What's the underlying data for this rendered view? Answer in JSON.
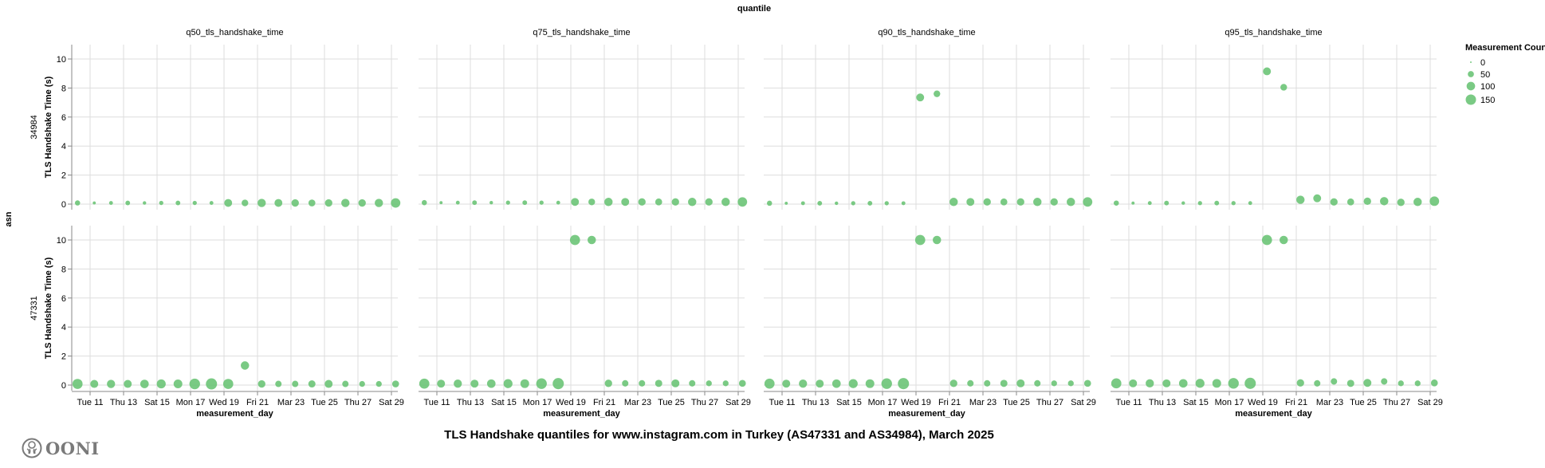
{
  "chart_data": {
    "type": "scatter",
    "title": "TLS Handshake quantiles for www.instagram.com in Turkey (AS47331 and AS34984), March 2025",
    "column_facet_title": "quantile",
    "row_facet_title": "asn",
    "xlabel": "measurement_day",
    "ylabel": "TLS Handshake Time (s)",
    "ylim": [
      0,
      11
    ],
    "yticks": [
      0,
      2,
      4,
      6,
      8,
      10
    ],
    "xticks": [
      {
        "date": "2025-03-11",
        "label": "Tue 11"
      },
      {
        "date": "2025-03-13",
        "label": "Thu 13"
      },
      {
        "date": "2025-03-15",
        "label": "Sat 15"
      },
      {
        "date": "2025-03-17",
        "label": "Mon 17"
      },
      {
        "date": "2025-03-19",
        "label": "Wed 19"
      },
      {
        "date": "2025-03-21",
        "label": "Fri 21"
      },
      {
        "date": "2025-03-23",
        "label": "Mar 23"
      },
      {
        "date": "2025-03-25",
        "label": "Tue 25"
      },
      {
        "date": "2025-03-27",
        "label": "Thu 27"
      },
      {
        "date": "2025-03-29",
        "label": "Sat 29"
      }
    ],
    "grid": true,
    "color": "#6cc477",
    "size_legend": {
      "title": "Measurement Count",
      "values": [
        0,
        50,
        100,
        150
      ],
      "placement": "top-right"
    },
    "columns": [
      "q50_tls_handshake_time",
      "q75_tls_handshake_time",
      "q90_tls_handshake_time",
      "q95_tls_handshake_time"
    ],
    "dates": [
      "2025-03-10",
      "2025-03-11",
      "2025-03-12",
      "2025-03-13",
      "2025-03-14",
      "2025-03-15",
      "2025-03-16",
      "2025-03-17",
      "2025-03-18",
      "2025-03-19",
      "2025-03-20",
      "2025-03-21",
      "2025-03-22",
      "2025-03-23",
      "2025-03-24",
      "2025-03-25",
      "2025-03-26",
      "2025-03-27",
      "2025-03-28",
      "2025-03-29"
    ],
    "rows": [
      {
        "asn": "34984",
        "counts": [
          35,
          10,
          18,
          28,
          14,
          22,
          28,
          22,
          18,
          85,
          60,
          95,
          85,
          75,
          65,
          75,
          95,
          75,
          95,
          125
        ],
        "values": {
          "q50_tls_handshake_time": [
            0.08,
            0.08,
            0.08,
            0.08,
            0.08,
            0.08,
            0.08,
            0.08,
            0.08,
            0.08,
            0.08,
            0.08,
            0.08,
            0.08,
            0.08,
            0.08,
            0.08,
            0.08,
            0.08,
            0.08
          ],
          "q75_tls_handshake_time": [
            0.1,
            0.1,
            0.1,
            0.1,
            0.1,
            0.1,
            0.1,
            0.1,
            0.1,
            0.15,
            0.15,
            0.15,
            0.15,
            0.15,
            0.15,
            0.15,
            0.15,
            0.15,
            0.15,
            0.15
          ],
          "q90_tls_handshake_time": [
            0.06,
            0.06,
            0.06,
            0.06,
            0.06,
            0.06,
            0.06,
            0.06,
            0.06,
            7.35,
            7.6,
            0.15,
            0.15,
            0.15,
            0.15,
            0.15,
            0.15,
            0.15,
            0.15,
            0.15
          ],
          "q95_tls_handshake_time": [
            0.07,
            0.07,
            0.07,
            0.07,
            0.07,
            0.07,
            0.07,
            0.07,
            0.07,
            9.15,
            8.05,
            0.3,
            0.4,
            0.15,
            0.15,
            0.2,
            0.2,
            0.12,
            0.15,
            0.2
          ]
        }
      },
      {
        "asn": "47331",
        "counts": [
          143,
          87,
          93,
          87,
          100,
          112,
          106,
          158,
          175,
          143,
          97,
          75,
          55,
          55,
          70,
          87,
          55,
          45,
          45,
          65
        ],
        "values": {
          "q50_tls_handshake_time": [
            0.08,
            0.08,
            0.08,
            0.08,
            0.08,
            0.08,
            0.08,
            0.08,
            0.08,
            0.08,
            1.35,
            0.08,
            0.08,
            0.08,
            0.08,
            0.08,
            0.08,
            0.08,
            0.08,
            0.08
          ],
          "q75_tls_handshake_time": [
            0.1,
            0.1,
            0.1,
            0.1,
            0.1,
            0.1,
            0.1,
            0.1,
            0.1,
            10,
            10,
            0.12,
            0.12,
            0.12,
            0.12,
            0.12,
            0.12,
            0.12,
            0.12,
            0.12
          ],
          "q90_tls_handshake_time": [
            0.1,
            0.1,
            0.1,
            0.1,
            0.1,
            0.1,
            0.1,
            0.1,
            0.1,
            10,
            10,
            0.12,
            0.12,
            0.12,
            0.12,
            0.12,
            0.12,
            0.12,
            0.12,
            0.12
          ],
          "q95_tls_handshake_time": [
            0.12,
            0.12,
            0.12,
            0.12,
            0.12,
            0.12,
            0.12,
            0.12,
            0.12,
            10,
            10,
            0.15,
            0.12,
            0.25,
            0.12,
            0.15,
            0.25,
            0.12,
            0.12,
            0.15
          ]
        }
      }
    ]
  },
  "branding": {
    "logo_text": "OONI"
  }
}
